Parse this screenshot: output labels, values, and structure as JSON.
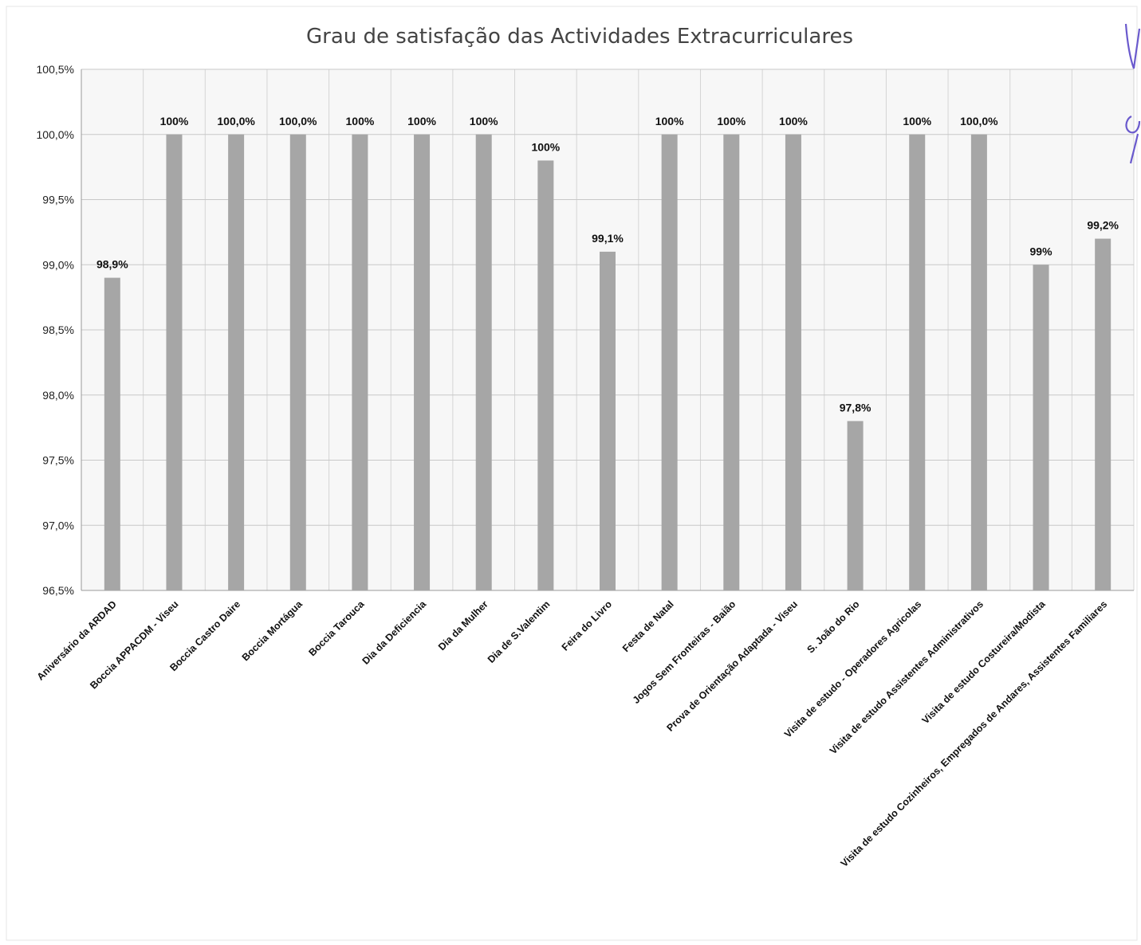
{
  "chart_data": {
    "type": "bar",
    "title": "Grau de satisfação das Actividades Extracurriculares",
    "xlabel": "",
    "ylabel": "",
    "ylim": [
      96.5,
      100.5
    ],
    "grid": true,
    "legend": "none",
    "bar_color": "#a6a6a6",
    "y_ticks": [
      "96,5%",
      "97,0%",
      "97,5%",
      "98,0%",
      "98,5%",
      "99,0%",
      "99,5%",
      "100,0%",
      "100,5%"
    ],
    "categories": [
      "Aniversário da ARDAD",
      "Boccia APPACDM - Viseu",
      "Boccia Castro Daire",
      "Boccia Mortágua",
      "Boccia Tarouca",
      "Dia da Deficiencia",
      "Dia da Mulher",
      "Dia de S.Valentim",
      "Feira do Livro",
      "Festa de Natal",
      "Jogos Sem Fronteiras - Baião",
      "Prova de Orientação Adaptada - Viseu",
      "S. João do Rio",
      "Visita de estudo - Operadores Agricolas",
      "Visita de estudo Assistentes Administrativos",
      "Visita de estudo Costureira/Modista",
      "Visita de estudo Cozinheiros, Empregados de Andares, Assistentes Familiares"
    ],
    "values": [
      98.9,
      100.0,
      100.0,
      100.0,
      100.0,
      100.0,
      100.0,
      99.8,
      99.1,
      100.0,
      100.0,
      100.0,
      97.8,
      100.0,
      100.0,
      99.0,
      99.2
    ],
    "data_labels": [
      "98,9%",
      "100%",
      "100,0%",
      "100,0%",
      "100%",
      "100%",
      "100%",
      "100%",
      "99,1%",
      "100%",
      "100%",
      "100%",
      "97,8%",
      "100%",
      "100,0%",
      "99%",
      "99,2%"
    ]
  }
}
